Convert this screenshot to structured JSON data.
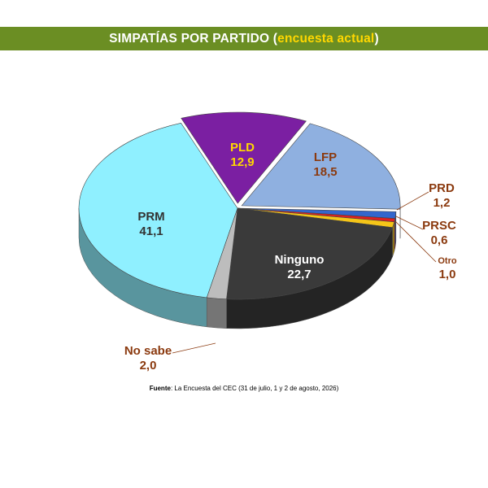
{
  "title": {
    "main": "SIMPATÍAS POR PARTIDO (",
    "highlight": "encuesta actual",
    "close": ")"
  },
  "source": {
    "label": "Fuente",
    "text": ": La Encuesta del CEC (31 de julio, 1 y 2 de agosto, 2026)"
  },
  "chart_data": {
    "type": "pie",
    "title": "SIMPATÍAS POR PARTIDO (encuesta actual)",
    "style": "3d-exploded",
    "slices": [
      {
        "label": "PLD",
        "value_text": "12,9",
        "value": 12.9,
        "color": "#7b1fa2",
        "text_color": "#ffd700"
      },
      {
        "label": "LFP",
        "value_text": "18,5",
        "value": 18.5,
        "color": "#8fb0e0",
        "text_color": "#8b3a0f"
      },
      {
        "label": "PRD",
        "value_text": "1,2",
        "value": 1.2,
        "color": "#3366cc",
        "text_color": "#8b3a0f"
      },
      {
        "label": "PRSC",
        "value_text": "0,6",
        "value": 0.6,
        "color": "#e02020",
        "text_color": "#8b3a0f"
      },
      {
        "label": "Otro",
        "value_text": "1,0",
        "value": 1.0,
        "color": "#f5c518",
        "text_color": "#8b3a0f"
      },
      {
        "label": "Ninguno",
        "value_text": "22,7",
        "value": 22.7,
        "color": "#3a3a3a",
        "text_color": "#ffffff"
      },
      {
        "label": "No sabe",
        "value_text": "2,0",
        "value": 2.0,
        "color": "#bdbdbd",
        "text_color": "#8b3a0f"
      },
      {
        "label": "PRM",
        "value_text": "41,1",
        "value": 41.1,
        "color": "#8ff0ff",
        "text_color": "#333333"
      }
    ]
  }
}
